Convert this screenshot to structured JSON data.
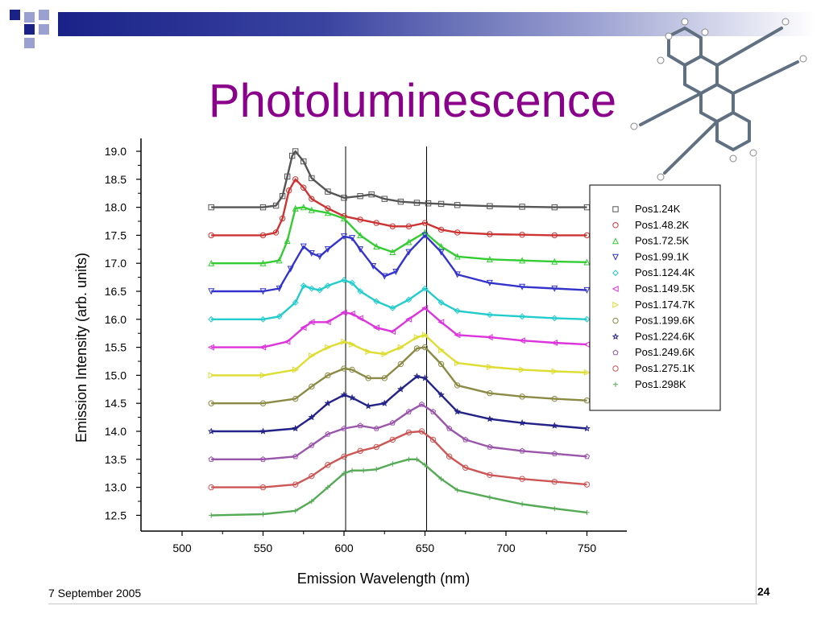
{
  "slide": {
    "title": "Photoluminescence",
    "date": "7 September 2005",
    "page_number": "24"
  },
  "colors": {
    "title": "#8b008b",
    "title_bar_start": "#1a2288",
    "title_bar_end": "#ffffff",
    "decor_dark": "#1a2288",
    "decor_light": "#9aa0d0"
  },
  "molecule": {
    "icon": "molecule-structure-icon"
  },
  "chart_data": {
    "type": "line",
    "title": "",
    "xlabel": "Emission Wavelength (nm)",
    "ylabel": "Emission Intensity (arb. units)",
    "xlim": [
      478,
      778
    ],
    "ylim": [
      12.3,
      19.2
    ],
    "xticks": [
      500,
      550,
      600,
      650,
      700,
      750
    ],
    "xtick_labels": [
      "500",
      "550",
      "600",
      "650",
      "700",
      "750"
    ],
    "yticks": [
      12.5,
      13.0,
      13.5,
      14.0,
      14.5,
      15.0,
      15.5,
      16.0,
      16.5,
      17.0,
      17.5,
      18.0,
      18.5,
      19.0
    ],
    "ytick_labels": [
      "12.5",
      "13.0",
      "13.5",
      "14.0",
      "14.5",
      "15.0",
      "15.5",
      "16.0",
      "16.5",
      "17.0",
      "17.5",
      "18.0",
      "18.5",
      "19.0"
    ],
    "reference_lines_x": [
      601,
      651
    ],
    "grid": false,
    "legend_position": "top-right",
    "series": [
      {
        "name": "Pos1.24K",
        "color": "#555555",
        "marker": "square",
        "x": [
          518,
          550,
          558,
          562,
          565,
          568,
          570,
          575,
          580,
          590,
          600,
          610,
          617,
          625,
          635,
          645,
          652,
          660,
          670,
          690,
          710,
          730,
          750
        ],
        "y": [
          18.0,
          18.0,
          18.03,
          18.2,
          18.55,
          18.92,
          19.0,
          18.82,
          18.52,
          18.28,
          18.17,
          18.2,
          18.23,
          18.15,
          18.1,
          18.08,
          18.07,
          18.06,
          18.04,
          18.02,
          18.01,
          18.0,
          18.0
        ]
      },
      {
        "name": "Pos1.48.2K",
        "color": "#cc3333",
        "marker": "circle",
        "x": [
          518,
          550,
          558,
          562,
          566,
          570,
          575,
          580,
          590,
          600,
          610,
          620,
          630,
          640,
          650,
          660,
          670,
          690,
          710,
          730,
          750
        ],
        "y": [
          17.5,
          17.5,
          17.55,
          17.8,
          18.3,
          18.5,
          18.35,
          18.15,
          17.98,
          17.84,
          17.78,
          17.72,
          17.66,
          17.66,
          17.72,
          17.6,
          17.55,
          17.52,
          17.51,
          17.5,
          17.5
        ]
      },
      {
        "name": "Pos1.72.5K",
        "color": "#33cc33",
        "marker": "triangle-up",
        "x": [
          518,
          550,
          560,
          565,
          570,
          575,
          580,
          590,
          600,
          610,
          620,
          630,
          640,
          650,
          660,
          670,
          690,
          710,
          730,
          750
        ],
        "y": [
          17.0,
          17.0,
          17.05,
          17.4,
          17.98,
          18.0,
          17.95,
          17.9,
          17.8,
          17.5,
          17.3,
          17.2,
          17.38,
          17.55,
          17.3,
          17.12,
          17.07,
          17.05,
          17.03,
          17.02
        ]
      },
      {
        "name": "Pos1.99.1K",
        "color": "#3333cc",
        "marker": "triangle-down",
        "x": [
          518,
          550,
          560,
          567,
          575,
          580,
          585,
          590,
          600,
          605,
          610,
          618,
          625,
          632,
          640,
          650,
          660,
          670,
          690,
          710,
          730,
          750
        ],
        "y": [
          16.5,
          16.5,
          16.55,
          16.9,
          17.3,
          17.18,
          17.12,
          17.25,
          17.48,
          17.45,
          17.25,
          16.95,
          16.77,
          16.85,
          17.2,
          17.5,
          17.2,
          16.8,
          16.65,
          16.58,
          16.55,
          16.52
        ]
      },
      {
        "name": "Pos1.124.4K",
        "color": "#22cccc",
        "marker": "diamond",
        "x": [
          518,
          550,
          560,
          570,
          575,
          580,
          585,
          590,
          600,
          605,
          610,
          620,
          630,
          640,
          650,
          660,
          670,
          690,
          710,
          730,
          750
        ],
        "y": [
          16.0,
          16.0,
          16.05,
          16.3,
          16.6,
          16.55,
          16.52,
          16.6,
          16.7,
          16.65,
          16.5,
          16.32,
          16.2,
          16.35,
          16.55,
          16.3,
          16.15,
          16.08,
          16.05,
          16.02,
          16.0
        ]
      },
      {
        "name": "Pos1.149.5K",
        "color": "#dd33dd",
        "marker": "triangle-left",
        "x": [
          518,
          550,
          565,
          575,
          580,
          590,
          600,
          605,
          610,
          620,
          630,
          640,
          650,
          660,
          670,
          690,
          710,
          730,
          750
        ],
        "y": [
          15.5,
          15.5,
          15.6,
          15.85,
          15.95,
          15.95,
          16.12,
          16.1,
          16.02,
          15.85,
          15.78,
          16.0,
          16.2,
          15.95,
          15.72,
          15.68,
          15.62,
          15.58,
          15.55
        ]
      },
      {
        "name": "Pos1.174.7K",
        "color": "#dddd33",
        "marker": "triangle-right",
        "x": [
          518,
          550,
          570,
          580,
          590,
          600,
          605,
          615,
          625,
          635,
          645,
          650,
          660,
          670,
          690,
          710,
          730,
          750
        ],
        "y": [
          15.0,
          15.0,
          15.1,
          15.35,
          15.5,
          15.6,
          15.55,
          15.42,
          15.38,
          15.5,
          15.68,
          15.72,
          15.45,
          15.22,
          15.15,
          15.1,
          15.07,
          15.05
        ]
      },
      {
        "name": "Pos1.199.6K",
        "color": "#8a8a44",
        "marker": "circle",
        "x": [
          518,
          550,
          570,
          580,
          590,
          600,
          605,
          615,
          625,
          635,
          645,
          650,
          660,
          670,
          690,
          710,
          730,
          750
        ],
        "y": [
          14.5,
          14.5,
          14.58,
          14.8,
          15.0,
          15.12,
          15.1,
          14.95,
          14.95,
          15.2,
          15.48,
          15.5,
          15.2,
          14.82,
          14.68,
          14.62,
          14.58,
          14.55
        ]
      },
      {
        "name": "Pos1.224.6K",
        "color": "#222288",
        "marker": "star",
        "x": [
          518,
          550,
          570,
          580,
          590,
          600,
          605,
          615,
          625,
          635,
          645,
          650,
          660,
          670,
          690,
          710,
          730,
          750
        ],
        "y": [
          14.0,
          14.0,
          14.05,
          14.25,
          14.5,
          14.65,
          14.6,
          14.45,
          14.5,
          14.75,
          14.98,
          14.95,
          14.65,
          14.35,
          14.22,
          14.15,
          14.1,
          14.05
        ]
      },
      {
        "name": "Pos1.249.6K",
        "color": "#9955aa",
        "marker": "pentagon",
        "x": [
          518,
          550,
          570,
          580,
          590,
          600,
          610,
          620,
          630,
          640,
          648,
          655,
          665,
          675,
          690,
          710,
          730,
          750
        ],
        "y": [
          13.5,
          13.5,
          13.55,
          13.75,
          13.95,
          14.05,
          14.1,
          14.05,
          14.15,
          14.35,
          14.48,
          14.35,
          14.05,
          13.85,
          13.72,
          13.65,
          13.6,
          13.55
        ]
      },
      {
        "name": "Pos1.275.1K",
        "color": "#cc5555",
        "marker": "circle",
        "x": [
          518,
          550,
          570,
          580,
          590,
          600,
          610,
          620,
          630,
          640,
          648,
          655,
          665,
          675,
          690,
          710,
          730,
          750
        ],
        "y": [
          13.0,
          13.0,
          13.05,
          13.2,
          13.4,
          13.55,
          13.65,
          13.72,
          13.85,
          13.98,
          14.0,
          13.85,
          13.55,
          13.35,
          13.22,
          13.15,
          13.1,
          13.05
        ]
      },
      {
        "name": "Pos1.298K",
        "color": "#55aa55",
        "marker": "plus",
        "x": [
          518,
          550,
          570,
          580,
          590,
          600,
          605,
          612,
          620,
          630,
          640,
          645,
          650,
          660,
          670,
          690,
          710,
          730,
          750
        ],
        "y": [
          12.5,
          12.52,
          12.58,
          12.75,
          13.0,
          13.25,
          13.3,
          13.3,
          13.32,
          13.42,
          13.5,
          13.5,
          13.4,
          13.15,
          12.95,
          12.82,
          12.7,
          12.62,
          12.55
        ]
      }
    ]
  }
}
